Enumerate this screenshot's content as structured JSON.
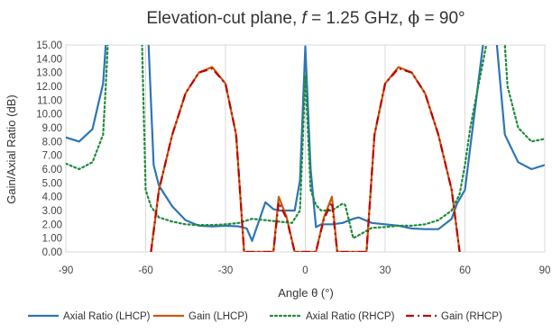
{
  "chart_data": {
    "type": "line",
    "title": "Elevation-cut plane, f = 1.25 GHz, ϕ = 90°",
    "title_parts": {
      "prefix": "Elevation-cut plane, ",
      "f_symbol": "f",
      "middle": " = 1.25 GHz, ",
      "phi_symbol": "ϕ",
      "suffix": " = 90°"
    },
    "xlabel": "Angle θ (°)",
    "ylabel": "Gain/Axial Ratio (dB)",
    "xlim": [
      -90,
      90
    ],
    "ylim": [
      0,
      15
    ],
    "x_ticks": [
      -90,
      -60,
      -30,
      0,
      30,
      60,
      90
    ],
    "y_ticks": [
      "0.00",
      "1.00",
      "2.00",
      "3.00",
      "4.00",
      "5.00",
      "6.00",
      "7.00",
      "8.00",
      "9.00",
      "10.00",
      "11.00",
      "12.00",
      "13.00",
      "14.00",
      "15.00"
    ],
    "grid": {
      "vertical_major": true,
      "horizontal": false
    },
    "legend_position": "bottom",
    "series": [
      {
        "name": "Axial Ratio (LHCP)",
        "color": "#2e75b6",
        "style": "solid",
        "x": [
          -90,
          -85,
          -80,
          -76,
          -75,
          -73,
          -60,
          -57,
          -55,
          -50,
          -45,
          -40,
          -35,
          -30,
          -25,
          -22,
          -20,
          -15,
          -12,
          -10,
          -7,
          -4,
          -2,
          0,
          2,
          4,
          6,
          10,
          14,
          18,
          20,
          25,
          30,
          35,
          40,
          45,
          50,
          55,
          57,
          60,
          70,
          72,
          75,
          80,
          85,
          90
        ],
        "y": [
          8.3,
          8.0,
          8.9,
          12.2,
          15.0,
          20.0,
          20.0,
          6.3,
          4.8,
          3.3,
          2.3,
          1.9,
          1.85,
          1.9,
          1.85,
          1.7,
          0.8,
          3.6,
          3.1,
          3.0,
          3.0,
          3.0,
          5.2,
          14.9,
          6.0,
          1.8,
          2.0,
          2.0,
          2.1,
          2.4,
          2.5,
          2.1,
          2.0,
          1.9,
          1.7,
          1.65,
          1.65,
          2.4,
          3.5,
          4.5,
          20.0,
          15.0,
          8.5,
          6.5,
          6.0,
          6.3
        ]
      },
      {
        "name": "Gain (LHCP)",
        "color": "#c55a11",
        "style": "solid",
        "x": [
          -58,
          -55,
          -50,
          -45,
          -40,
          -35,
          -30,
          -26,
          -23,
          -12,
          -10,
          -7,
          -4,
          4,
          7,
          10,
          12,
          23,
          26,
          30,
          35,
          40,
          45,
          50,
          55,
          58
        ],
        "y": [
          0,
          4.5,
          8.5,
          11.5,
          13.0,
          13.4,
          12.2,
          8.5,
          0,
          0,
          4.0,
          2.5,
          0,
          0,
          2.5,
          4.0,
          0,
          0,
          8.5,
          12.2,
          13.4,
          13.0,
          11.5,
          8.5,
          4.5,
          0
        ]
      },
      {
        "name": "Axial Ratio (RHCP)",
        "color": "#1e8c3a",
        "style": "dotted",
        "x": [
          -90,
          -85,
          -80,
          -76,
          -75,
          -73,
          -62,
          -60,
          -58,
          -55,
          -50,
          -45,
          -40,
          -35,
          -30,
          -25,
          -20,
          -15,
          -10,
          -5,
          -2,
          0,
          2,
          4,
          6,
          10,
          14,
          15,
          18,
          20,
          25,
          30,
          35,
          40,
          45,
          50,
          55,
          58,
          60,
          62,
          73,
          75,
          76,
          80,
          85,
          90
        ],
        "y": [
          6.4,
          6.0,
          6.5,
          8.5,
          12.0,
          20.0,
          20.0,
          4.5,
          3.3,
          2.5,
          2.2,
          2.0,
          1.95,
          1.95,
          2.0,
          2.1,
          2.4,
          2.3,
          2.2,
          2.1,
          3.0,
          12.8,
          4.5,
          3.4,
          3.0,
          3.0,
          3.5,
          3.4,
          1.0,
          1.2,
          1.75,
          1.8,
          1.9,
          1.9,
          2.0,
          2.3,
          3.0,
          4.2,
          6.3,
          9.0,
          20.0,
          15.0,
          12.0,
          9.0,
          8.0,
          8.2
        ]
      },
      {
        "name": "Gain (RHCP)",
        "color": "#c00000",
        "style": "dashdot",
        "x": [
          -58,
          -55,
          -50,
          -45,
          -40,
          -35,
          -30,
          -26,
          -23,
          -12,
          -10,
          -7,
          -4,
          4,
          7,
          10,
          12,
          23,
          26,
          30,
          35,
          40,
          45,
          50,
          55,
          58
        ],
        "y": [
          0,
          4.5,
          8.5,
          11.5,
          13.0,
          13.3,
          12.2,
          8.5,
          0,
          0,
          3.6,
          2.4,
          0,
          0,
          2.4,
          3.6,
          0,
          0,
          8.5,
          12.2,
          13.3,
          13.0,
          11.5,
          8.5,
          4.5,
          0
        ]
      }
    ]
  }
}
